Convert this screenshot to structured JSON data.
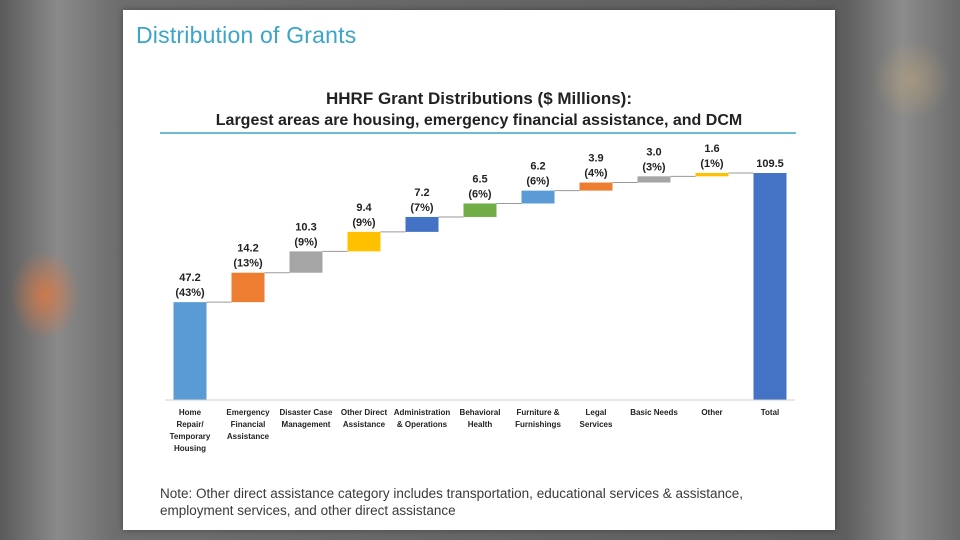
{
  "slide": {
    "title": "Distribution of Grants",
    "note": "Note: Other direct assistance  category includes transportation, educational services & assistance, employment services, and other direct assistance"
  },
  "colors": {
    "title": "#3aa5c6",
    "rule": "#3aa5c6",
    "connector": "#9a9a9a"
  },
  "chart_data": {
    "type": "bar",
    "subtype": "waterfall",
    "title": "HHRF Grant Distributions ($ Millions):",
    "subtitle": "Largest areas are housing, emergency financial assistance, and DCM",
    "ylim": [
      0,
      109.5
    ],
    "grid": false,
    "items": [
      {
        "category": [
          "Home",
          "Repair/",
          "Temporary",
          "Housing"
        ],
        "value": 47.2,
        "value_label": "47.2",
        "pct_label": "(43%)",
        "color": "#5b9bd5"
      },
      {
        "category": [
          "Emergency",
          "Financial",
          "Assistance"
        ],
        "value": 14.2,
        "value_label": "14.2",
        "pct_label": "(13%)",
        "color": "#ed7d31"
      },
      {
        "category": [
          "Disaster Case",
          "Management"
        ],
        "value": 10.3,
        "value_label": "10.3",
        "pct_label": "(9%)",
        "color": "#a5a5a5"
      },
      {
        "category": [
          "Other Direct",
          "Assistance"
        ],
        "value": 9.4,
        "value_label": "9.4",
        "pct_label": "(9%)",
        "color": "#ffc000"
      },
      {
        "category": [
          "Administration",
          "& Operations"
        ],
        "value": 7.2,
        "value_label": "7.2",
        "pct_label": "(7%)",
        "color": "#4472c4"
      },
      {
        "category": [
          "Behavioral",
          "Health"
        ],
        "value": 6.5,
        "value_label": "6.5",
        "pct_label": "(6%)",
        "color": "#70ad47"
      },
      {
        "category": [
          "Furniture &",
          "Furnishings"
        ],
        "value": 6.2,
        "value_label": "6.2",
        "pct_label": "(6%)",
        "color": "#5b9bd5"
      },
      {
        "category": [
          "Legal",
          "Services"
        ],
        "value": 3.9,
        "value_label": "3.9",
        "pct_label": "(4%)",
        "color": "#ed7d31"
      },
      {
        "category": [
          "Basic Needs"
        ],
        "value": 3.0,
        "value_label": "3.0",
        "pct_label": "(3%)",
        "color": "#a5a5a5"
      },
      {
        "category": [
          "Other"
        ],
        "value": 1.6,
        "value_label": "1.6",
        "pct_label": "(1%)",
        "color": "#ffc000"
      }
    ],
    "total": {
      "category": [
        "Total"
      ],
      "value": 109.5,
      "value_label": "109.5",
      "color": "#4472c4"
    }
  }
}
